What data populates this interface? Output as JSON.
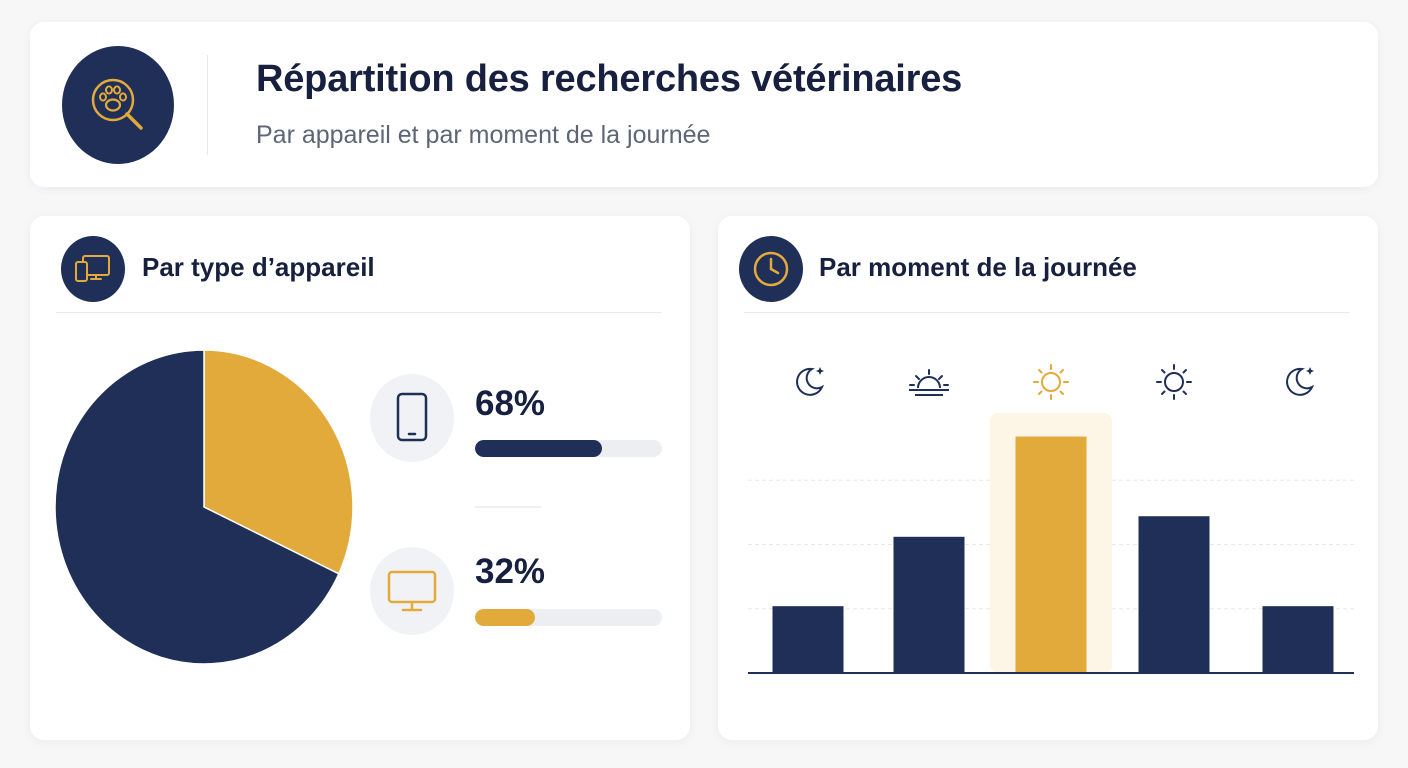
{
  "header": {
    "title": "Répartition des recherches vétérinaires",
    "subtitle": "Par appareil et par moment de la journée",
    "logo_icon": "paw-magnifier-icon"
  },
  "device_section": {
    "title": "Par type d’appareil",
    "icon": "devices-icon",
    "items": [
      {
        "icon": "smartphone-icon",
        "percent_label": "68%",
        "value": 68,
        "color": "#1f2f58"
      },
      {
        "icon": "monitor-icon",
        "percent_label": "32%",
        "value": 32,
        "color": "#e2a93b"
      }
    ]
  },
  "time_section": {
    "title": "Par moment de la journée",
    "icon": "clock-icon",
    "period_icons": [
      "moon-stars-icon",
      "sunrise-icon",
      "sun-icon",
      "sun-icon",
      "moon-stars-icon"
    ],
    "highlight_index": 2
  },
  "colors": {
    "navy": "#1f2f58",
    "gold": "#e2a93b",
    "highlight_bg": "#fdf6e6"
  },
  "chart_data": [
    {
      "type": "pie",
      "labels": [
        "Mobile",
        "Ordinateur"
      ],
      "values": [
        68,
        32
      ],
      "colors": [
        "#1f2f58",
        "#e2a93b"
      ]
    },
    {
      "type": "bar",
      "categories": [
        "",
        "",
        "",
        "",
        ""
      ],
      "values": [
        26,
        53,
        92,
        61,
        26
      ],
      "colors": [
        "#1f2f58",
        "#1f2f58",
        "#e2a93b",
        "#1f2f58",
        "#1f2f58"
      ],
      "ylim": [
        0,
        100
      ],
      "grid": true,
      "xlabel": "",
      "ylabel": ""
    }
  ]
}
